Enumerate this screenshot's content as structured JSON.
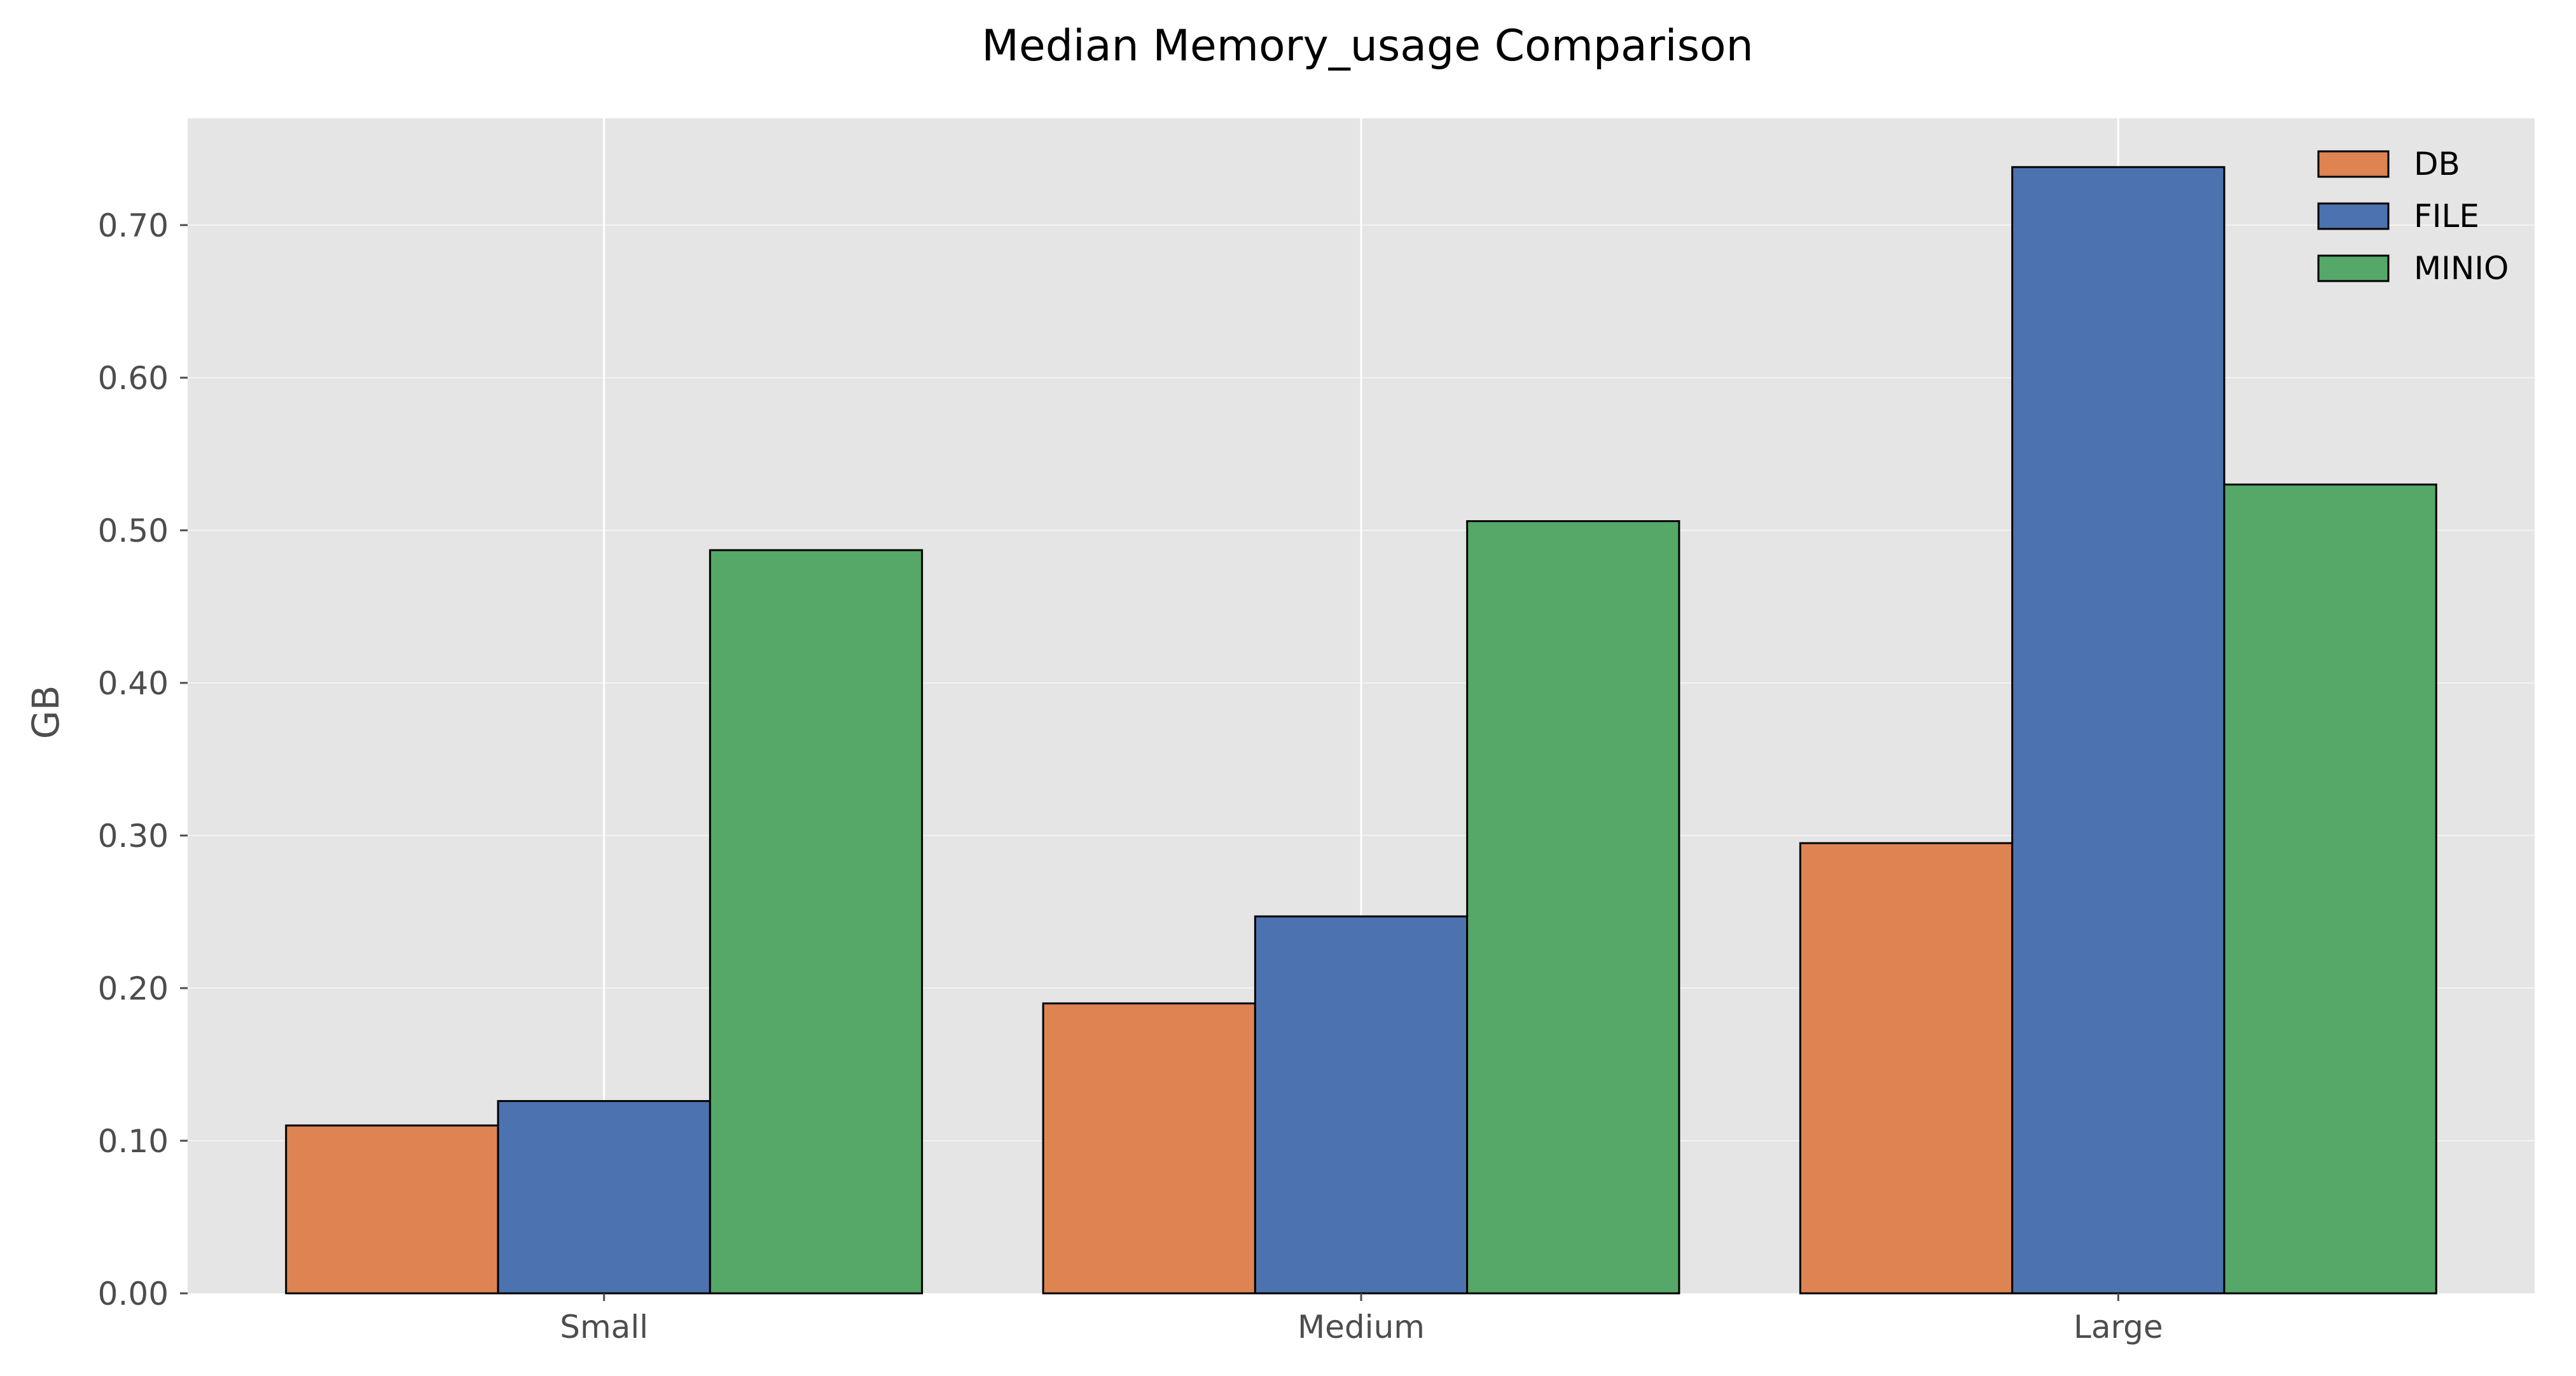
{
  "chart_data": {
    "type": "bar",
    "title": "Median Memory_usage Comparison",
    "xlabel": "",
    "ylabel": "GB",
    "categories": [
      "Small",
      "Medium",
      "Large"
    ],
    "series": [
      {
        "name": "DB",
        "color": "#dd8452",
        "values": [
          0.11,
          0.19,
          0.295
        ]
      },
      {
        "name": "FILE",
        "color": "#4c72b0",
        "values": [
          0.126,
          0.247,
          0.738
        ]
      },
      {
        "name": "MINIO",
        "color": "#55a868",
        "values": [
          0.487,
          0.506,
          0.53
        ]
      }
    ],
    "ylim": [
      0,
      0.77
    ],
    "yticks": [
      "0.00",
      "0.10",
      "0.20",
      "0.30",
      "0.40",
      "0.50",
      "0.60",
      "0.70"
    ],
    "grid": true,
    "legend_position": "top-right",
    "colors": {
      "plot_background": "#e5e5e5",
      "grid": "#ffffff",
      "bar_edge": "#000000"
    }
  }
}
